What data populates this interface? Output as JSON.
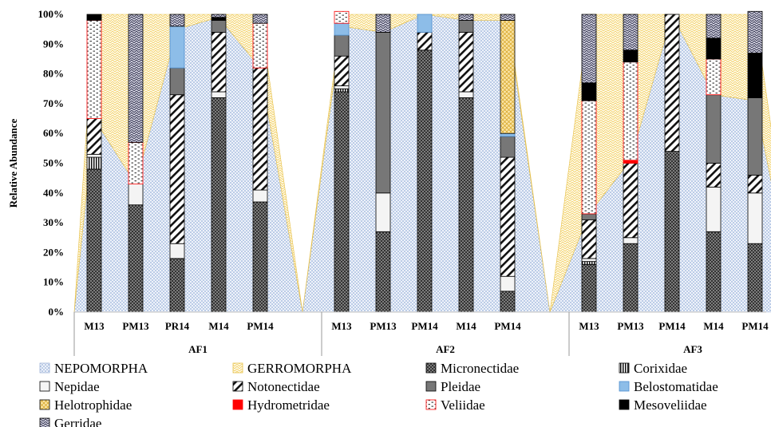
{
  "chart_data": {
    "type": "bar",
    "stacked": true,
    "ylabel": "Relative Abundance",
    "ylim": [
      0,
      100
    ],
    "ytick_labels": [
      "0%",
      "10%",
      "20%",
      "30%",
      "40%",
      "50%",
      "60%",
      "70%",
      "80%",
      "90%",
      "100%"
    ],
    "legend_position": "bottom",
    "groups": [
      {
        "name": "AF1",
        "categories": [
          "M13",
          "PM13",
          "PR14",
          "M14",
          "PM14"
        ]
      },
      {
        "name": "AF2",
        "categories": [
          "M13",
          "PM13",
          "PM14",
          "M14",
          "PM14"
        ]
      },
      {
        "name": "AF3",
        "categories": [
          "M13",
          "PM13",
          "PM14",
          "M14",
          "PM14"
        ]
      }
    ],
    "area_series": [
      {
        "name": "NEPOMORPHA",
        "values": [
          [
            65,
            43,
            95,
            99,
            82
          ],
          [
            96,
            94,
            100,
            98,
            98
          ],
          [
            33,
            51,
            100,
            73,
            71
          ]
        ]
      },
      {
        "name": "GERROMORPHA",
        "values": [
          [
            35,
            57,
            5,
            1,
            18
          ],
          [
            4,
            6,
            0,
            2,
            2
          ],
          [
            67,
            49,
            0,
            27,
            29
          ]
        ]
      }
    ],
    "bar_series": [
      {
        "name": "Micronectidae",
        "values": [
          [
            48,
            36,
            18,
            72,
            37
          ],
          [
            74,
            27,
            88,
            72,
            7
          ],
          [
            16,
            23,
            54,
            27,
            23
          ]
        ]
      },
      {
        "name": "Corixidae",
        "values": [
          [
            4,
            0,
            0,
            0,
            0
          ],
          [
            1,
            0,
            0,
            0,
            0
          ],
          [
            1,
            0,
            0,
            0,
            0
          ]
        ]
      },
      {
        "name": "Nepidae",
        "values": [
          [
            1,
            7,
            5,
            2,
            4
          ],
          [
            1,
            13,
            0,
            2,
            5
          ],
          [
            1,
            2,
            0,
            15,
            17
          ]
        ]
      },
      {
        "name": "Notonectidae",
        "values": [
          [
            12,
            0,
            50,
            20,
            41
          ],
          [
            10,
            0,
            6,
            20,
            40
          ],
          [
            13,
            25,
            46,
            8,
            6
          ]
        ]
      },
      {
        "name": "Pleidae",
        "values": [
          [
            0,
            0,
            9,
            4,
            0
          ],
          [
            7,
            54,
            0,
            4,
            7
          ],
          [
            2,
            0,
            0,
            23,
            26
          ]
        ]
      },
      {
        "name": "Belostomatidae",
        "values": [
          [
            0,
            0,
            14,
            0,
            0
          ],
          [
            4,
            0,
            6,
            0,
            1
          ],
          [
            0,
            0,
            0,
            0,
            0
          ]
        ]
      },
      {
        "name": "Helotrophidae",
        "values": [
          [
            0,
            0,
            0,
            0,
            0
          ],
          [
            0,
            0,
            0,
            0,
            38
          ],
          [
            0,
            0,
            0,
            0,
            0
          ]
        ]
      },
      {
        "name": "Hydrometridae",
        "values": [
          [
            0,
            0,
            0,
            0,
            0
          ],
          [
            0,
            0,
            0,
            0,
            0
          ],
          [
            0,
            1,
            0,
            0,
            0
          ]
        ]
      },
      {
        "name": "Veliidae",
        "values": [
          [
            33,
            14,
            0,
            0,
            15
          ],
          [
            4,
            0,
            0,
            0,
            0
          ],
          [
            38,
            33,
            0,
            12,
            0
          ]
        ]
      },
      {
        "name": "Mesoveliidae",
        "values": [
          [
            2,
            0,
            0,
            1,
            0
          ],
          [
            0,
            0,
            0,
            0,
            0
          ],
          [
            6,
            4,
            0,
            7,
            15
          ]
        ]
      },
      {
        "name": "Gerridae",
        "values": [
          [
            0,
            43,
            4,
            1,
            3
          ],
          [
            0,
            6,
            0,
            2,
            2
          ],
          [
            23,
            12,
            0,
            8,
            14
          ]
        ]
      }
    ],
    "colors": {
      "NEPOMORPHA": "#c7d5ec",
      "GERROMORPHA": "#f8e29a",
      "Micronectidae": "#555555",
      "Corixidae": "#111111",
      "Nepidae": "#f4f4f4",
      "Notonectidae": "#111111",
      "Pleidae": "#777777",
      "Belostomatidae": "#6fa8dc",
      "Helotrophidae": "#f1d07a",
      "Hydrometridae": "#ff0000",
      "Veliidae": "#ff0000",
      "Mesoveliidae": "#000000",
      "Gerridae": "#333333"
    },
    "legend_order": [
      "NEPOMORPHA",
      "GERROMORPHA",
      "Micronectidae",
      "Corixidae",
      "Nepidae",
      "Notonectidae",
      "Pleidae",
      "Belostomatidae",
      "Helotrophidae",
      "Hydrometridae",
      "Veliidae",
      "Mesoveliidae",
      "Gerridae"
    ]
  }
}
